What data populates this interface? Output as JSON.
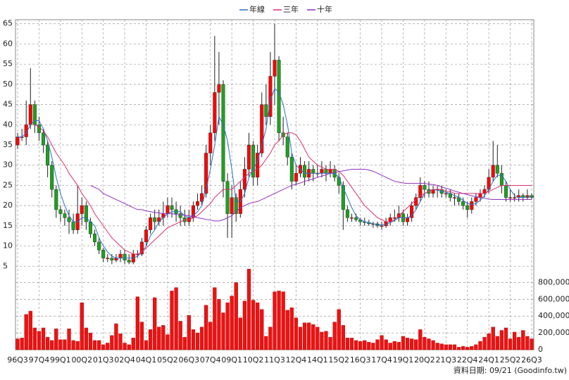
{
  "chart_data": {
    "type": "candlestick",
    "categories": [
      "96Q3",
      null,
      null,
      null,
      null,
      "97Q4",
      null,
      null,
      null,
      null,
      "99Q1",
      null,
      null,
      null,
      null,
      "00Q2",
      null,
      null,
      null,
      null,
      "01Q3",
      null,
      null,
      null,
      null,
      "02Q4",
      null,
      null,
      null,
      null,
      "04Q1",
      null,
      null,
      null,
      null,
      "05Q2",
      null,
      null,
      null,
      null,
      "06Q3",
      null,
      null,
      null,
      null,
      "07Q4",
      null,
      null,
      null,
      null,
      "09Q1",
      null,
      null,
      null,
      null,
      "10Q2",
      null,
      null,
      null,
      null,
      "11Q3",
      null,
      null,
      null,
      null,
      "12Q4",
      null,
      null,
      null,
      null,
      "14Q1",
      null,
      null,
      null,
      null,
      "15Q2",
      null,
      null,
      null,
      null,
      "16Q3",
      null,
      null,
      null,
      null,
      "17Q4",
      null,
      null,
      null,
      null,
      "19Q1",
      null,
      null,
      null,
      null,
      "20Q2",
      null,
      null,
      null,
      null,
      "21Q3",
      null,
      null,
      null,
      null,
      "22Q4",
      null,
      null,
      null,
      null,
      "24Q1",
      null,
      null,
      null,
      null,
      "25Q2",
      null,
      null,
      null,
      null,
      "26Q3"
    ],
    "ohlc": [
      [
        35,
        38,
        34,
        37
      ],
      [
        37,
        39,
        36,
        37
      ],
      [
        37,
        46,
        35,
        40
      ],
      [
        40,
        54,
        39,
        45
      ],
      [
        45,
        46,
        38,
        40
      ],
      [
        40,
        42,
        36,
        38
      ],
      [
        38,
        39,
        33,
        35
      ],
      [
        35,
        36,
        27,
        30
      ],
      [
        30,
        31,
        22,
        24
      ],
      [
        24,
        25,
        17,
        19
      ],
      [
        19,
        20,
        16,
        18
      ],
      [
        18,
        19,
        15,
        17
      ],
      [
        17,
        19,
        13,
        16
      ],
      [
        16,
        18,
        13,
        14
      ],
      [
        14,
        25,
        13,
        18
      ],
      [
        18,
        22,
        15,
        20
      ],
      [
        20,
        21,
        14,
        16
      ],
      [
        16,
        17,
        12,
        13
      ],
      [
        13,
        14,
        10,
        11
      ],
      [
        11,
        12,
        8,
        9
      ],
      [
        9,
        9.5,
        6,
        7
      ],
      [
        7,
        8,
        6,
        7
      ],
      [
        7,
        8,
        5.5,
        6.5
      ],
      [
        6.5,
        8,
        6,
        7
      ],
      [
        7,
        9,
        6,
        8
      ],
      [
        8,
        9,
        5.5,
        6.5
      ],
      [
        6.5,
        8,
        5.5,
        6
      ],
      [
        6,
        9,
        5.5,
        8
      ],
      [
        8,
        9,
        7,
        8
      ],
      [
        8,
        12,
        7.5,
        11
      ],
      [
        11,
        15,
        10,
        14
      ],
      [
        14,
        18,
        13,
        17
      ],
      [
        17,
        19,
        14,
        16
      ],
      [
        16,
        19,
        15,
        17
      ],
      [
        17,
        21,
        15,
        18
      ],
      [
        18,
        22,
        17,
        20
      ],
      [
        20,
        22,
        17,
        19
      ],
      [
        19,
        21,
        16,
        18
      ],
      [
        18,
        20,
        15,
        17
      ],
      [
        17,
        19,
        15,
        16
      ],
      [
        16,
        19,
        15,
        17
      ],
      [
        17,
        21,
        16,
        20
      ],
      [
        20,
        23,
        19,
        21
      ],
      [
        21,
        25,
        20,
        23
      ],
      [
        23,
        35,
        22,
        33
      ],
      [
        33,
        40,
        30,
        38
      ],
      [
        38,
        62,
        36,
        48
      ],
      [
        48,
        58,
        40,
        50
      ],
      [
        50,
        51,
        22,
        26
      ],
      [
        26,
        28,
        12,
        18
      ],
      [
        18,
        25,
        12,
        22
      ],
      [
        22,
        23,
        16,
        18
      ],
      [
        18,
        26,
        17,
        24
      ],
      [
        24,
        32,
        22,
        29
      ],
      [
        29,
        38,
        27,
        35
      ],
      [
        35,
        36,
        25,
        27
      ],
      [
        27,
        35,
        25,
        33
      ],
      [
        33,
        48,
        32,
        45
      ],
      [
        45,
        50,
        40,
        42
      ],
      [
        42,
        58,
        40,
        52
      ],
      [
        52,
        65,
        45,
        56
      ],
      [
        56,
        57,
        36,
        38
      ],
      [
        38,
        42,
        35,
        37
      ],
      [
        37,
        38,
        30,
        32
      ],
      [
        32,
        33,
        24,
        26
      ],
      [
        26,
        30,
        25,
        28
      ],
      [
        28,
        32,
        27,
        30
      ],
      [
        30,
        31,
        25,
        27
      ],
      [
        27,
        31,
        26,
        29
      ],
      [
        29,
        30,
        26,
        28
      ],
      [
        28,
        30,
        27,
        28
      ],
      [
        28,
        31,
        27,
        29
      ],
      [
        29,
        30,
        26,
        28
      ],
      [
        28,
        31,
        27,
        29
      ],
      [
        29,
        30,
        26,
        27
      ],
      [
        27,
        28,
        23,
        25
      ],
      [
        25,
        26,
        14,
        19
      ],
      [
        19,
        20,
        16,
        17
      ],
      [
        17,
        18,
        16,
        17
      ],
      [
        17,
        18,
        16,
        16.5
      ],
      [
        16.5,
        17,
        15,
        16
      ],
      [
        16,
        17,
        15,
        15.8
      ],
      [
        15.8,
        16.5,
        15,
        15.5
      ],
      [
        15.5,
        16,
        14.5,
        15.5
      ],
      [
        15.5,
        16,
        14.5,
        15
      ],
      [
        15,
        16,
        14,
        15
      ],
      [
        15,
        17,
        14.5,
        16
      ],
      [
        16,
        18,
        15,
        17
      ],
      [
        17,
        19,
        16,
        17
      ],
      [
        17,
        20,
        16,
        18
      ],
      [
        18,
        19,
        15,
        16
      ],
      [
        16,
        18,
        15,
        17
      ],
      [
        17,
        21,
        16,
        20
      ],
      [
        20,
        23,
        19,
        22
      ],
      [
        22,
        27,
        21,
        25
      ],
      [
        25,
        26,
        22,
        24
      ],
      [
        24,
        26,
        22,
        23
      ],
      [
        23,
        25,
        22,
        24
      ],
      [
        24,
        25,
        22,
        24
      ],
      [
        24,
        25,
        22,
        23
      ],
      [
        23,
        24,
        22,
        23
      ],
      [
        23,
        24,
        21,
        22
      ],
      [
        22,
        23,
        20,
        22
      ],
      [
        22,
        23,
        20,
        21
      ],
      [
        21,
        22,
        19,
        20
      ],
      [
        20,
        21,
        17,
        19
      ],
      [
        19,
        22,
        18,
        21
      ],
      [
        21,
        23,
        20,
        22
      ],
      [
        22,
        24,
        21,
        23
      ],
      [
        23,
        25,
        22,
        24
      ],
      [
        24,
        29,
        23,
        27
      ],
      [
        27,
        36,
        26,
        30
      ],
      [
        30,
        35,
        27,
        28
      ],
      [
        28,
        30,
        23,
        25
      ],
      [
        25,
        26,
        21,
        22
      ],
      [
        22,
        24,
        21,
        22
      ],
      [
        22,
        23,
        21,
        22
      ],
      [
        22,
        24,
        21,
        22.5
      ],
      [
        22.5,
        23,
        21,
        22
      ],
      [
        22,
        24,
        21.5,
        22.5
      ],
      [
        22.5,
        23,
        21.5,
        22
      ]
    ],
    "up_color": "#ff0000",
    "down_color": "#1fa01f",
    "series": [
      {
        "name": "年線",
        "color": "#2a6fc9",
        "values": [
          37,
          37,
          38,
          40,
          41,
          41,
          39,
          36,
          32,
          27,
          23,
          20,
          17.5,
          16,
          16,
          17,
          17,
          16,
          15,
          12,
          10,
          8.5,
          7.5,
          7,
          7,
          7,
          7,
          7,
          7.5,
          8.5,
          10,
          12.5,
          14,
          16,
          17,
          18,
          18.5,
          18.5,
          18.5,
          17.5,
          17,
          17.5,
          18.5,
          20,
          24,
          29,
          35,
          42,
          40,
          36,
          29,
          21,
          21,
          23,
          27,
          29,
          31,
          35,
          39,
          46,
          49,
          48,
          45,
          40,
          33,
          30,
          29,
          28,
          28,
          28,
          28,
          28,
          28,
          28,
          28,
          27,
          24.5,
          22,
          19.5,
          17.5,
          16.5,
          16,
          15.8,
          15.5,
          15.3,
          15.2,
          15.4,
          15.8,
          16.3,
          17,
          17,
          17,
          17.5,
          19,
          21,
          23,
          23.5,
          24,
          23.8,
          23.5,
          23.3,
          23,
          22.5,
          22,
          21.3,
          20.5,
          20.3,
          20.5,
          21.3,
          22.5,
          24,
          26,
          27.5,
          27.5,
          26,
          24,
          22.5,
          22,
          22,
          22.2,
          22.2
        ]
      },
      {
        "name": "三年",
        "color": "#e0306a",
        "values": [
          null,
          null,
          null,
          null,
          40,
          39.5,
          38.5,
          37,
          35,
          33,
          31.5,
          30,
          28,
          26.5,
          25,
          23,
          21.5,
          20,
          18,
          16.5,
          15,
          13.5,
          12,
          11,
          10,
          9,
          8.5,
          8,
          8,
          8.5,
          9.5,
          10.5,
          11.5,
          12.5,
          13.5,
          14.5,
          15,
          15.5,
          16,
          16.5,
          16.5,
          17,
          17.5,
          18.5,
          19.5,
          20.5,
          22,
          23,
          24,
          24,
          24,
          25,
          26,
          27,
          28,
          28.5,
          29,
          30,
          31.5,
          33,
          35,
          36,
          37.5,
          38,
          38,
          37.5,
          36,
          34,
          32,
          31,
          30,
          29.5,
          29,
          29,
          29,
          28.5,
          27.5,
          26,
          24.5,
          23,
          21.5,
          20,
          19,
          18,
          17,
          16.5,
          16,
          16,
          16.5,
          17.5,
          18.5,
          19.5,
          20.5,
          21.5,
          22.5,
          23,
          23.5,
          24,
          24,
          24,
          23.5,
          23.5,
          23,
          23,
          23,
          23,
          23,
          23,
          23,
          23,
          23.5,
          24,
          24.5,
          25,
          25,
          25,
          25,
          25,
          25,
          25,
          25
        ]
      },
      {
        "name": "十年",
        "color": "#9030c0",
        "values": [
          null,
          null,
          null,
          null,
          null,
          null,
          null,
          null,
          null,
          null,
          null,
          null,
          null,
          null,
          null,
          null,
          null,
          25,
          24.5,
          24,
          23,
          22.5,
          22,
          21.5,
          21,
          20.5,
          20,
          19.5,
          19,
          19,
          18.7,
          18.5,
          18.3,
          18.2,
          18,
          18,
          18,
          17.8,
          17.7,
          17.6,
          17.5,
          17.3,
          17,
          16.8,
          16.6,
          16.4,
          16.2,
          16.2,
          16.5,
          17,
          17.5,
          18.5,
          19.5,
          20,
          20.5,
          20.8,
          21,
          21.5,
          22,
          22.5,
          23,
          23.5,
          24,
          24.5,
          25,
          25.3,
          25.6,
          26,
          26.3,
          26.6,
          27,
          27.3,
          27.6,
          28,
          28.2,
          28.4,
          28.6,
          28.8,
          29,
          29,
          29,
          29,
          28.8,
          28.5,
          28,
          27.5,
          27,
          26.5,
          26,
          25.8,
          25.6,
          25.5,
          25.5,
          25.5,
          25.5,
          25.5,
          25.3,
          25.2,
          25,
          24.6,
          24.3,
          24,
          23.6,
          23.3,
          23,
          22.7,
          22.4,
          22.2,
          22,
          21.8,
          21.6,
          21.5,
          21.5,
          21.5,
          21.5,
          21.5,
          21.5,
          21.5,
          21.5,
          21.5,
          21.5
        ]
      }
    ],
    "volume": [
      130000,
      140000,
      420000,
      460000,
      260000,
      220000,
      260000,
      150000,
      110000,
      250000,
      120000,
      120000,
      250000,
      110000,
      100000,
      560000,
      260000,
      200000,
      110000,
      110000,
      60000,
      80000,
      170000,
      310000,
      190000,
      80000,
      60000,
      140000,
      630000,
      330000,
      110000,
      240000,
      620000,
      270000,
      290000,
      180000,
      700000,
      740000,
      340000,
      150000,
      410000,
      240000,
      200000,
      270000,
      530000,
      330000,
      740000,
      600000,
      440000,
      560000,
      640000,
      800000,
      380000,
      580000,
      960000,
      590000,
      560000,
      480000,
      160000,
      270000,
      690000,
      700000,
      690000,
      470000,
      500000,
      380000,
      270000,
      320000,
      320000,
      300000,
      270000,
      210000,
      220000,
      150000,
      330000,
      480000,
      290000,
      140000,
      140000,
      110000,
      100000,
      110000,
      90000,
      80000,
      120000,
      170000,
      120000,
      80000,
      100000,
      90000,
      160000,
      140000,
      130000,
      120000,
      240000,
      150000,
      130000,
      110000,
      80000,
      70000,
      60000,
      60000,
      60000,
      30000,
      40000,
      30000,
      40000,
      60000,
      100000,
      150000,
      190000,
      270000,
      160000,
      230000,
      260000,
      130000,
      210000,
      150000,
      230000,
      160000,
      130000
    ],
    "volume_color": "#ee1111",
    "ylim": [
      0,
      66
    ],
    "yticks": [
      5,
      10,
      15,
      20,
      25,
      30,
      35,
      40,
      45,
      50,
      55,
      60,
      65
    ],
    "y2lim": [
      0,
      980000
    ],
    "y2ticks": [
      0,
      {
        "value": 200000,
        "label": "200,000"
      },
      {
        "value": 400000,
        "label": "400,000"
      },
      {
        "value": 600000,
        "label": "600,000"
      },
      {
        "value": 800000,
        "label": "800,000"
      }
    ],
    "grid": true,
    "legend": "top",
    "footer": "資料日期: 09/21 (Goodinfo.tw)"
  }
}
